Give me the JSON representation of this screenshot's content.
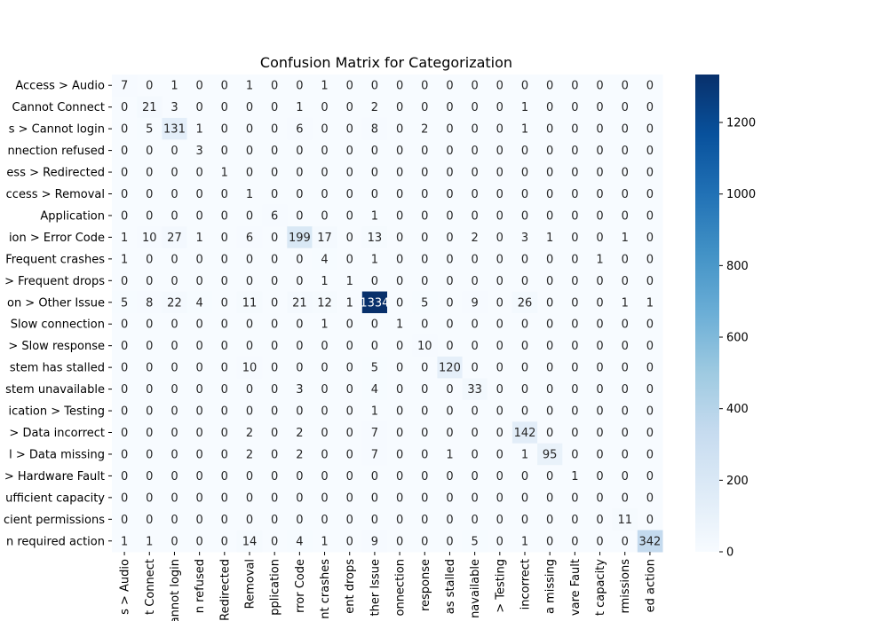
{
  "chart_data": {
    "type": "heatmap",
    "title": "Confusion Matrix for Categorization",
    "colormap": "Blues",
    "color_low": "#f7fbff",
    "color_high": "#08306b",
    "colorbar": {
      "min": 0,
      "max": 1334,
      "ticks": [
        "0",
        "200",
        "400",
        "600",
        "800",
        "1000",
        "1200"
      ]
    },
    "row_labels": [
      "Access > Audio",
      "Cannot Connect",
      "s > Cannot login",
      "nnection refused",
      "ess > Redirected",
      "ccess > Removal",
      "Application",
      "ion > Error Code",
      "Frequent crashes",
      "> Frequent drops",
      "on > Other Issue",
      "Slow connection",
      "> Slow response",
      "stem has stalled",
      "stem unavailable",
      "ication > Testing",
      "> Data incorrect",
      "l > Data missing",
      "> Hardware Fault",
      "ufficient capacity",
      "cient permissions",
      "n required action"
    ],
    "col_labels": [
      "s > Audio",
      "t Connect",
      "annot login",
      "n refused",
      "Redirected",
      "Removal",
      "pplication",
      "rror Code",
      "nt crashes",
      "ent drops",
      "ther Issue",
      "onnection",
      "response",
      "as stalled",
      "navailable",
      "> Testing",
      "incorrect",
      "a missing",
      "vare Fault",
      "t capacity",
      "rmissions",
      "ed action"
    ],
    "matrix": [
      [
        7,
        0,
        1,
        0,
        0,
        1,
        0,
        0,
        1,
        0,
        0,
        0,
        0,
        0,
        0,
        0,
        0,
        0,
        0,
        0,
        0,
        0
      ],
      [
        0,
        21,
        3,
        0,
        0,
        0,
        0,
        1,
        0,
        0,
        2,
        0,
        0,
        0,
        0,
        0,
        1,
        0,
        0,
        0,
        0,
        0
      ],
      [
        0,
        5,
        131,
        1,
        0,
        0,
        0,
        6,
        0,
        0,
        8,
        0,
        2,
        0,
        0,
        0,
        1,
        0,
        0,
        0,
        0,
        0
      ],
      [
        0,
        0,
        0,
        3,
        0,
        0,
        0,
        0,
        0,
        0,
        0,
        0,
        0,
        0,
        0,
        0,
        0,
        0,
        0,
        0,
        0,
        0
      ],
      [
        0,
        0,
        0,
        0,
        1,
        0,
        0,
        0,
        0,
        0,
        0,
        0,
        0,
        0,
        0,
        0,
        0,
        0,
        0,
        0,
        0,
        0
      ],
      [
        0,
        0,
        0,
        0,
        0,
        1,
        0,
        0,
        0,
        0,
        0,
        0,
        0,
        0,
        0,
        0,
        0,
        0,
        0,
        0,
        0,
        0
      ],
      [
        0,
        0,
        0,
        0,
        0,
        0,
        6,
        0,
        0,
        0,
        1,
        0,
        0,
        0,
        0,
        0,
        0,
        0,
        0,
        0,
        0,
        0
      ],
      [
        1,
        10,
        27,
        1,
        0,
        6,
        0,
        199,
        17,
        0,
        13,
        0,
        0,
        0,
        2,
        0,
        3,
        1,
        0,
        0,
        1,
        0
      ],
      [
        1,
        0,
        0,
        0,
        0,
        0,
        0,
        0,
        4,
        0,
        1,
        0,
        0,
        0,
        0,
        0,
        0,
        0,
        0,
        1,
        0,
        0
      ],
      [
        0,
        0,
        0,
        0,
        0,
        0,
        0,
        0,
        1,
        1,
        0,
        0,
        0,
        0,
        0,
        0,
        0,
        0,
        0,
        0,
        0,
        0
      ],
      [
        5,
        8,
        22,
        4,
        0,
        11,
        0,
        21,
        12,
        1,
        1334,
        0,
        5,
        0,
        9,
        0,
        26,
        0,
        0,
        0,
        1,
        1
      ],
      [
        0,
        0,
        0,
        0,
        0,
        0,
        0,
        0,
        1,
        0,
        0,
        1,
        0,
        0,
        0,
        0,
        0,
        0,
        0,
        0,
        0,
        0
      ],
      [
        0,
        0,
        0,
        0,
        0,
        0,
        0,
        0,
        0,
        0,
        0,
        0,
        10,
        0,
        0,
        0,
        0,
        0,
        0,
        0,
        0,
        0
      ],
      [
        0,
        0,
        0,
        0,
        0,
        10,
        0,
        0,
        0,
        0,
        5,
        0,
        0,
        120,
        0,
        0,
        0,
        0,
        0,
        0,
        0,
        0
      ],
      [
        0,
        0,
        0,
        0,
        0,
        0,
        0,
        3,
        0,
        0,
        4,
        0,
        0,
        0,
        33,
        0,
        0,
        0,
        0,
        0,
        0,
        0
      ],
      [
        0,
        0,
        0,
        0,
        0,
        0,
        0,
        0,
        0,
        0,
        1,
        0,
        0,
        0,
        0,
        0,
        0,
        0,
        0,
        0,
        0,
        0
      ],
      [
        0,
        0,
        0,
        0,
        0,
        2,
        0,
        2,
        0,
        0,
        7,
        0,
        0,
        0,
        0,
        0,
        142,
        0,
        0,
        0,
        0,
        0
      ],
      [
        0,
        0,
        0,
        0,
        0,
        2,
        0,
        2,
        0,
        0,
        7,
        0,
        0,
        1,
        0,
        0,
        1,
        95,
        0,
        0,
        0,
        0
      ],
      [
        0,
        0,
        0,
        0,
        0,
        0,
        0,
        0,
        0,
        0,
        0,
        0,
        0,
        0,
        0,
        0,
        0,
        0,
        1,
        0,
        0,
        0
      ],
      [
        0,
        0,
        0,
        0,
        0,
        0,
        0,
        0,
        0,
        0,
        0,
        0,
        0,
        0,
        0,
        0,
        0,
        0,
        0,
        0,
        0,
        0
      ],
      [
        0,
        0,
        0,
        0,
        0,
        0,
        0,
        0,
        0,
        0,
        0,
        0,
        0,
        0,
        0,
        0,
        0,
        0,
        0,
        0,
        11,
        0
      ],
      [
        1,
        1,
        0,
        0,
        0,
        14,
        0,
        4,
        1,
        0,
        9,
        0,
        0,
        0,
        5,
        0,
        1,
        0,
        0,
        0,
        0,
        342
      ]
    ]
  }
}
